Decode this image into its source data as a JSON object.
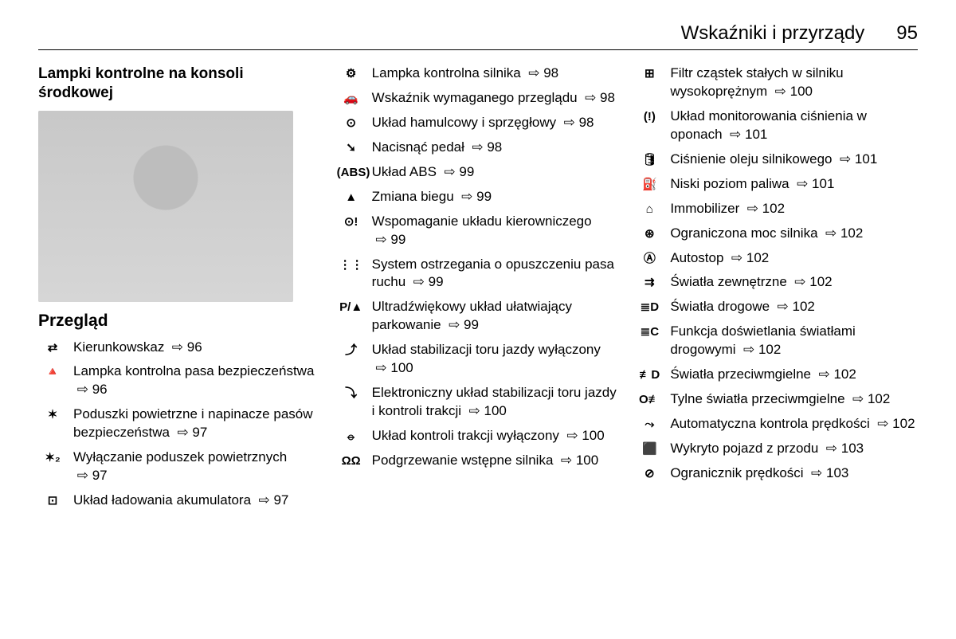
{
  "header": {
    "title": "Wskaźniki i przyrządy",
    "page": "95"
  },
  "col1": {
    "title": "Lampki kontrolne na konsoli środkowej",
    "subtitle": "Przegląd",
    "items": [
      {
        "icon": "⇄",
        "text": "Kierunkowskaz",
        "ref": "⇨ 96"
      },
      {
        "icon": "🔺",
        "text": "Lampka kontrolna pasa bezpieczeństwa",
        "ref": "⇨ 96"
      },
      {
        "icon": "✶",
        "text": "Poduszki powietrzne i napinacze pasów bezpieczeństwa",
        "ref": "⇨ 97"
      },
      {
        "icon": "✶₂",
        "text": "Wyłączanie poduszek powietrznych",
        "ref": "⇨ 97"
      },
      {
        "icon": "⊡",
        "text": "Układ ładowania akumulatora",
        "ref": "⇨ 97"
      }
    ]
  },
  "col2": {
    "items": [
      {
        "icon": "⚙",
        "text": "Lampka kontrolna silnika",
        "ref": "⇨ 98"
      },
      {
        "icon": "🚗",
        "text": "Wskaźnik wymaganego przeglądu",
        "ref": "⇨ 98"
      },
      {
        "icon": "⊙",
        "text": "Układ hamulcowy i sprzęgłowy",
        "ref": "⇨ 98"
      },
      {
        "icon": "➘",
        "text": "Nacisnąć pedał",
        "ref": "⇨ 98"
      },
      {
        "icon": "(ABS)",
        "text": "Układ ABS",
        "ref": "⇨ 99"
      },
      {
        "icon": "▲",
        "text": "Zmiana biegu",
        "ref": "⇨ 99"
      },
      {
        "icon": "⊙!",
        "text": "Wspomaganie układu kierowniczego",
        "ref": "⇨ 99"
      },
      {
        "icon": "⋮⋮",
        "text": "System ostrzegania o opuszczeniu pasa ruchu",
        "ref": "⇨ 99"
      },
      {
        "icon": "P/▲",
        "text": "Ultradźwiękowy układ ułatwiający parkowanie",
        "ref": "⇨ 99"
      },
      {
        "icon": "⤴",
        "text": "Układ stabilizacji toru jazdy wyłączony",
        "ref": "⇨ 100"
      },
      {
        "icon": "⤵",
        "text": "Elektroniczny układ stabilizacji toru jazdy i kontroli trakcji",
        "ref": "⇨ 100"
      },
      {
        "icon": "⦵",
        "text": "Układ kontroli trakcji wyłączony",
        "ref": "⇨ 100"
      },
      {
        "icon": "ΩΩ",
        "text": "Podgrzewanie wstępne silnika",
        "ref": "⇨ 100"
      }
    ]
  },
  "col3": {
    "items": [
      {
        "icon": "⊞",
        "text": "Filtr cząstek stałych w silniku wysokoprężnym",
        "ref": "⇨ 100"
      },
      {
        "icon": "(!)",
        "text": "Układ monitorowania ciśnienia w oponach",
        "ref": "⇨ 101"
      },
      {
        "icon": "🛢",
        "text": "Ciśnienie oleju silnikowego",
        "ref": "⇨ 101"
      },
      {
        "icon": "⛽",
        "text": "Niski poziom paliwa",
        "ref": "⇨ 101"
      },
      {
        "icon": "⌂",
        "text": "Immobilizer",
        "ref": "⇨ 102"
      },
      {
        "icon": "⊛",
        "text": "Ograniczona moc silnika",
        "ref": "⇨ 102"
      },
      {
        "icon": "Ⓐ",
        "text": "Autostop",
        "ref": "⇨ 102"
      },
      {
        "icon": "⇉",
        "text": "Światła zewnętrzne",
        "ref": "⇨ 102"
      },
      {
        "icon": "≣D",
        "text": "Światła drogowe",
        "ref": "⇨ 102"
      },
      {
        "icon": "≣C",
        "text": "Funkcja doświetlania światłami drogowymi",
        "ref": "⇨ 102"
      },
      {
        "icon": "≢D",
        "text": "Światła przeciwmgielne",
        "ref": "⇨ 102"
      },
      {
        "icon": "O≢",
        "text": "Tylne światła przeciwmgielne",
        "ref": "⇨ 102"
      },
      {
        "icon": "⤳",
        "text": "Automatyczna kontrola prędkości",
        "ref": "⇨ 102"
      },
      {
        "icon": "⬛",
        "text": "Wykryto pojazd z przodu",
        "ref": "⇨ 103"
      },
      {
        "icon": "⊘",
        "text": "Ogranicznik prędkości",
        "ref": "⇨ 103"
      }
    ]
  }
}
